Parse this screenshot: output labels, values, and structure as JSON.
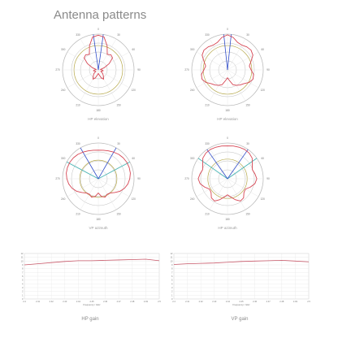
{
  "page_title": "Antenna patterns",
  "colors": {
    "ring": "#bdbdbd",
    "pattern": "#d64553",
    "beam_blue": "#2f4cc9",
    "beam_teal": "#3fb2b2",
    "ring_olive": "#b6a84a",
    "gain_line": "#c8596a",
    "grid": "#e6e6e6"
  },
  "chart_data": [
    {
      "type": "polar",
      "caption": "HP elevation",
      "angle_labels": [
        "0",
        "30",
        "60",
        "90",
        "120",
        "150",
        "180",
        "210",
        "240",
        "270",
        "300",
        "330"
      ],
      "beam_lines": [
        {
          "color": "beam_blue",
          "angles": [
            -8,
            8
          ]
        }
      ],
      "olive_ring": 0.68,
      "pattern_r": [
        0.97,
        0.93,
        0.72,
        0.5,
        0.55,
        0.52,
        0.35,
        0.18,
        0.06,
        0.1,
        0.14,
        0.1,
        0.08,
        0.16,
        0.22,
        0.3,
        0.24,
        0.14,
        0.1,
        0.14,
        0.24,
        0.3,
        0.22,
        0.16,
        0.08,
        0.1,
        0.14,
        0.1,
        0.06,
        0.18,
        0.35,
        0.52,
        0.55,
        0.5,
        0.72,
        0.93
      ]
    },
    {
      "type": "polar",
      "caption": "HP elevation",
      "angle_labels": [
        "0",
        "30",
        "60",
        "90",
        "120",
        "150",
        "180",
        "210",
        "240",
        "270",
        "300",
        "330"
      ],
      "beam_lines": [
        {
          "color": "beam_blue",
          "angles": [
            -6,
            6
          ]
        }
      ],
      "olive_ring": 0.68,
      "pattern_r": [
        0.98,
        0.92,
        0.82,
        0.8,
        0.84,
        0.86,
        0.82,
        0.7,
        0.62,
        0.66,
        0.74,
        0.76,
        0.7,
        0.6,
        0.55,
        0.5,
        0.44,
        0.3,
        0.22,
        0.3,
        0.44,
        0.5,
        0.55,
        0.6,
        0.7,
        0.76,
        0.74,
        0.66,
        0.62,
        0.7,
        0.82,
        0.86,
        0.84,
        0.8,
        0.82,
        0.92
      ]
    },
    {
      "type": "polar",
      "caption": "VP azimuth",
      "angle_labels": [
        "0",
        "30",
        "60",
        "90",
        "120",
        "150",
        "180",
        "210",
        "240",
        "270",
        "300",
        "330"
      ],
      "beam_lines": [
        {
          "color": "beam_teal",
          "angles": [
            -62,
            62
          ]
        },
        {
          "color": "beam_blue",
          "angles": [
            -30,
            30
          ]
        }
      ],
      "olive_ring": 0.52,
      "pattern_r": [
        0.8,
        0.81,
        0.83,
        0.86,
        0.89,
        0.91,
        0.92,
        0.92,
        0.91,
        0.88,
        0.84,
        0.78,
        0.7,
        0.6,
        0.52,
        0.5,
        0.55,
        0.5,
        0.4,
        0.5,
        0.55,
        0.5,
        0.52,
        0.6,
        0.7,
        0.78,
        0.84,
        0.88,
        0.91,
        0.92,
        0.92,
        0.91,
        0.89,
        0.86,
        0.83,
        0.81
      ]
    },
    {
      "type": "polar",
      "caption": "HP azimuth",
      "angle_labels": [
        "0",
        "30",
        "60",
        "90",
        "120",
        "150",
        "180",
        "210",
        "240",
        "270",
        "300",
        "330"
      ],
      "beam_lines": [
        {
          "color": "beam_teal",
          "angles": [
            -55,
            55
          ]
        },
        {
          "color": "beam_blue",
          "angles": [
            -35,
            35
          ]
        }
      ],
      "olive_ring": 0.55,
      "pattern_r": [
        0.92,
        0.93,
        0.94,
        0.95,
        0.94,
        0.9,
        0.8,
        0.74,
        0.78,
        0.82,
        0.78,
        0.68,
        0.58,
        0.6,
        0.7,
        0.72,
        0.62,
        0.52,
        0.45,
        0.52,
        0.62,
        0.72,
        0.7,
        0.6,
        0.58,
        0.68,
        0.78,
        0.82,
        0.78,
        0.74,
        0.8,
        0.9,
        0.94,
        0.95,
        0.94,
        0.93
      ]
    },
    {
      "type": "line",
      "caption": "HP gain",
      "ylabel": "",
      "ylim": [
        0,
        12
      ],
      "y_ticks": [
        "12",
        "11",
        "10",
        "9",
        "8",
        "7",
        "6",
        "5",
        "4",
        "3",
        "2",
        "1",
        "0"
      ],
      "x_ticks": [
        "2.4",
        "2.41",
        "2.42",
        "2.43",
        "2.44",
        "2.45",
        "2.46",
        "2.47",
        "2.48",
        "2.49",
        "2.5"
      ],
      "x_label": "Frequency / GHz",
      "x": [
        2.4,
        2.41,
        2.42,
        2.43,
        2.44,
        2.45,
        2.46,
        2.47,
        2.48,
        2.49,
        2.5
      ],
      "values": [
        9.0,
        9.3,
        9.6,
        9.9,
        10.1,
        10.1,
        10.2,
        10.3,
        10.4,
        10.5,
        10.1
      ]
    },
    {
      "type": "line",
      "caption": "VP gain",
      "ylabel": "",
      "ylim": [
        0,
        12
      ],
      "y_ticks": [
        "12",
        "11",
        "10",
        "9",
        "8",
        "7",
        "6",
        "5",
        "4",
        "3",
        "2",
        "1",
        "0"
      ],
      "x_ticks": [
        "2.4",
        "2.41",
        "2.42",
        "2.43",
        "2.44",
        "2.45",
        "2.46",
        "2.47",
        "2.48",
        "2.49",
        "2.5"
      ],
      "x_label": "Frequency / GHz",
      "x": [
        2.4,
        2.41,
        2.42,
        2.43,
        2.44,
        2.45,
        2.46,
        2.47,
        2.48,
        2.49,
        2.5
      ],
      "values": [
        9.1,
        9.3,
        9.4,
        9.5,
        9.7,
        9.9,
        10.0,
        10.1,
        10.2,
        10.0,
        9.8
      ]
    }
  ]
}
